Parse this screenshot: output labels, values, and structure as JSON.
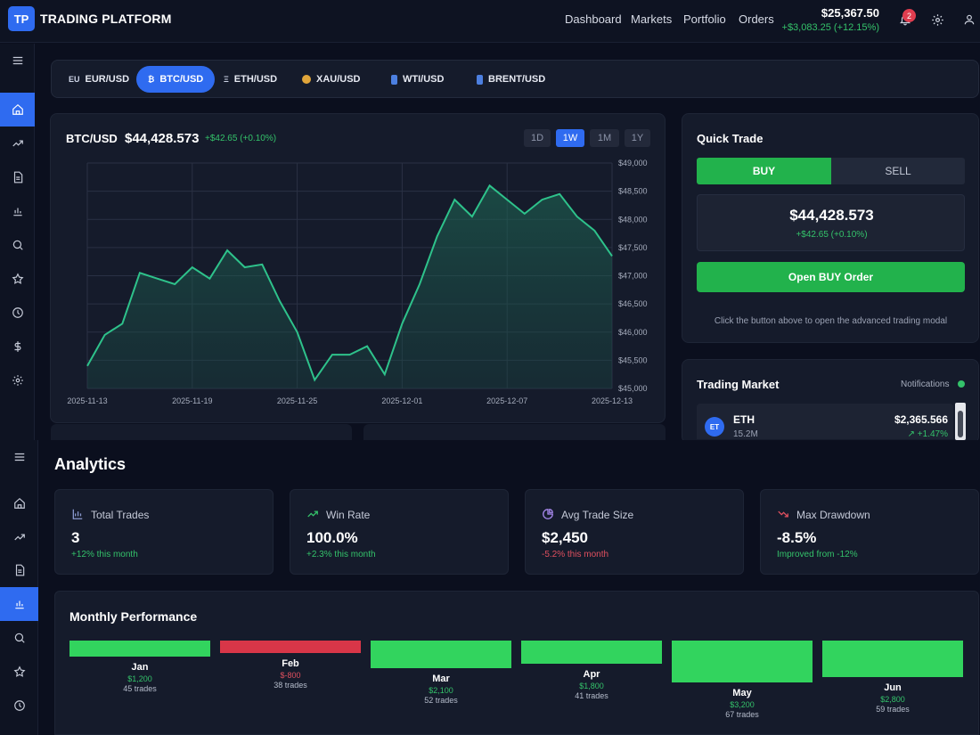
{
  "header": {
    "logo_text": "TP",
    "brand": "TRADING PLATFORM",
    "nav": [
      "Dashboard",
      "Markets",
      "Portfolio",
      "Orders"
    ],
    "balance": "$25,367.50",
    "balance_change": "+$3,083.25 (+12.15%)",
    "notification_count": "2",
    "icons": [
      "bell-icon",
      "gear-icon",
      "user-icon"
    ]
  },
  "pairs": [
    {
      "icon": "EU",
      "label": "EUR/USD",
      "active": false
    },
    {
      "icon": "₿",
      "label": "BTC/USD",
      "active": true
    },
    {
      "icon": "Ξ",
      "label": "ETH/USD",
      "active": false
    },
    {
      "icon": "medal",
      "label": "XAU/USD",
      "active": false
    },
    {
      "icon": "barrel",
      "label": "WTI/USD",
      "active": false
    },
    {
      "icon": "barrel",
      "label": "BRENT/USD",
      "active": false
    }
  ],
  "chart_panel": {
    "symbol": "BTC/USD",
    "price": "$44,428.573",
    "change": "+$42.65 (+0.10%)",
    "timeframes": [
      "1D",
      "1W",
      "1M",
      "1Y"
    ],
    "active_timeframe": "1W"
  },
  "chart_data": {
    "type": "area",
    "x_ticks": [
      "2025-11-13",
      "2025-11-19",
      "2025-11-25",
      "2025-12-01",
      "2025-12-07",
      "2025-12-13"
    ],
    "y_ticks": [
      "$49,000",
      "$48,500",
      "$48,000",
      "$47,500",
      "$47,000",
      "$46,500",
      "$46,000",
      "$45,500",
      "$45,000"
    ],
    "ylim": [
      45000,
      49000
    ],
    "xlim": [
      0,
      30
    ],
    "color": "#2ec28b",
    "values": [
      [
        0,
        45400
      ],
      [
        1,
        45950
      ],
      [
        2,
        46150
      ],
      [
        3,
        47050
      ],
      [
        4,
        46950
      ],
      [
        5,
        46850
      ],
      [
        6,
        47150
      ],
      [
        7,
        46950
      ],
      [
        8,
        47450
      ],
      [
        9,
        47150
      ],
      [
        10,
        47200
      ],
      [
        11,
        46550
      ],
      [
        12,
        46000
      ],
      [
        13,
        45150
      ],
      [
        14,
        45600
      ],
      [
        15,
        45600
      ],
      [
        16,
        45750
      ],
      [
        17,
        45250
      ],
      [
        18,
        46150
      ],
      [
        19,
        46850
      ],
      [
        20,
        47700
      ],
      [
        21,
        48350
      ],
      [
        22,
        48050
      ],
      [
        23,
        48600
      ],
      [
        24,
        48350
      ],
      [
        25,
        48100
      ],
      [
        26,
        48350
      ],
      [
        27,
        48450
      ],
      [
        28,
        48050
      ],
      [
        29,
        47800
      ],
      [
        30,
        47350
      ]
    ]
  },
  "quick_trade": {
    "title": "Quick Trade",
    "buy": "BUY",
    "sell": "SELL",
    "price": "$44,428.573",
    "change": "+$42.65 (+0.10%)",
    "open_button": "Open BUY Order",
    "hint": "Click the button above to open the advanced trading modal"
  },
  "trading_market": {
    "title": "Trading Market",
    "notifications_label": "Notifications",
    "items": [
      {
        "avatar": "ET",
        "name": "ETH",
        "volume": "15.2M",
        "price": "$2,365.566",
        "change": "+1.47%"
      }
    ]
  },
  "analytics": {
    "title": "Analytics",
    "stats": [
      {
        "icon": "bar-chart-icon",
        "label": "Total Trades",
        "value": "3",
        "sub": "+12% this month",
        "sub_color": "#34c26a",
        "icon_color": "#8a9ad0"
      },
      {
        "icon": "trending-up-icon",
        "label": "Win Rate",
        "value": "100.0%",
        "sub": "+2.3% this month",
        "sub_color": "#34c26a",
        "icon_color": "#34c26a"
      },
      {
        "icon": "pie-chart-icon",
        "label": "Avg Trade Size",
        "value": "$2,450",
        "sub": "-5.2% this month",
        "sub_color": "#e0505f",
        "icon_color": "#a98af0"
      },
      {
        "icon": "trending-down-icon",
        "label": "Max Drawdown",
        "value": "-8.5%",
        "sub": "Improved from -12%",
        "sub_color": "#34c26a",
        "icon_color": "#e0505f"
      }
    ]
  },
  "monthly": {
    "title": "Monthly Performance",
    "months": [
      {
        "name": "Jan",
        "value": "$1,200",
        "pnl": 1200,
        "trades": "45 trades"
      },
      {
        "name": "Feb",
        "value": "$-800",
        "pnl": -800,
        "trades": "38 trades"
      },
      {
        "name": "Mar",
        "value": "$2,100",
        "pnl": 2100,
        "trades": "52 trades"
      },
      {
        "name": "Apr",
        "value": "$1,800",
        "pnl": 1800,
        "trades": "41 trades"
      },
      {
        "name": "May",
        "value": "$3,200",
        "pnl": 3200,
        "trades": "67 trades"
      },
      {
        "name": "Jun",
        "value": "$2,800",
        "pnl": 2800,
        "trades": "59 trades"
      }
    ]
  }
}
